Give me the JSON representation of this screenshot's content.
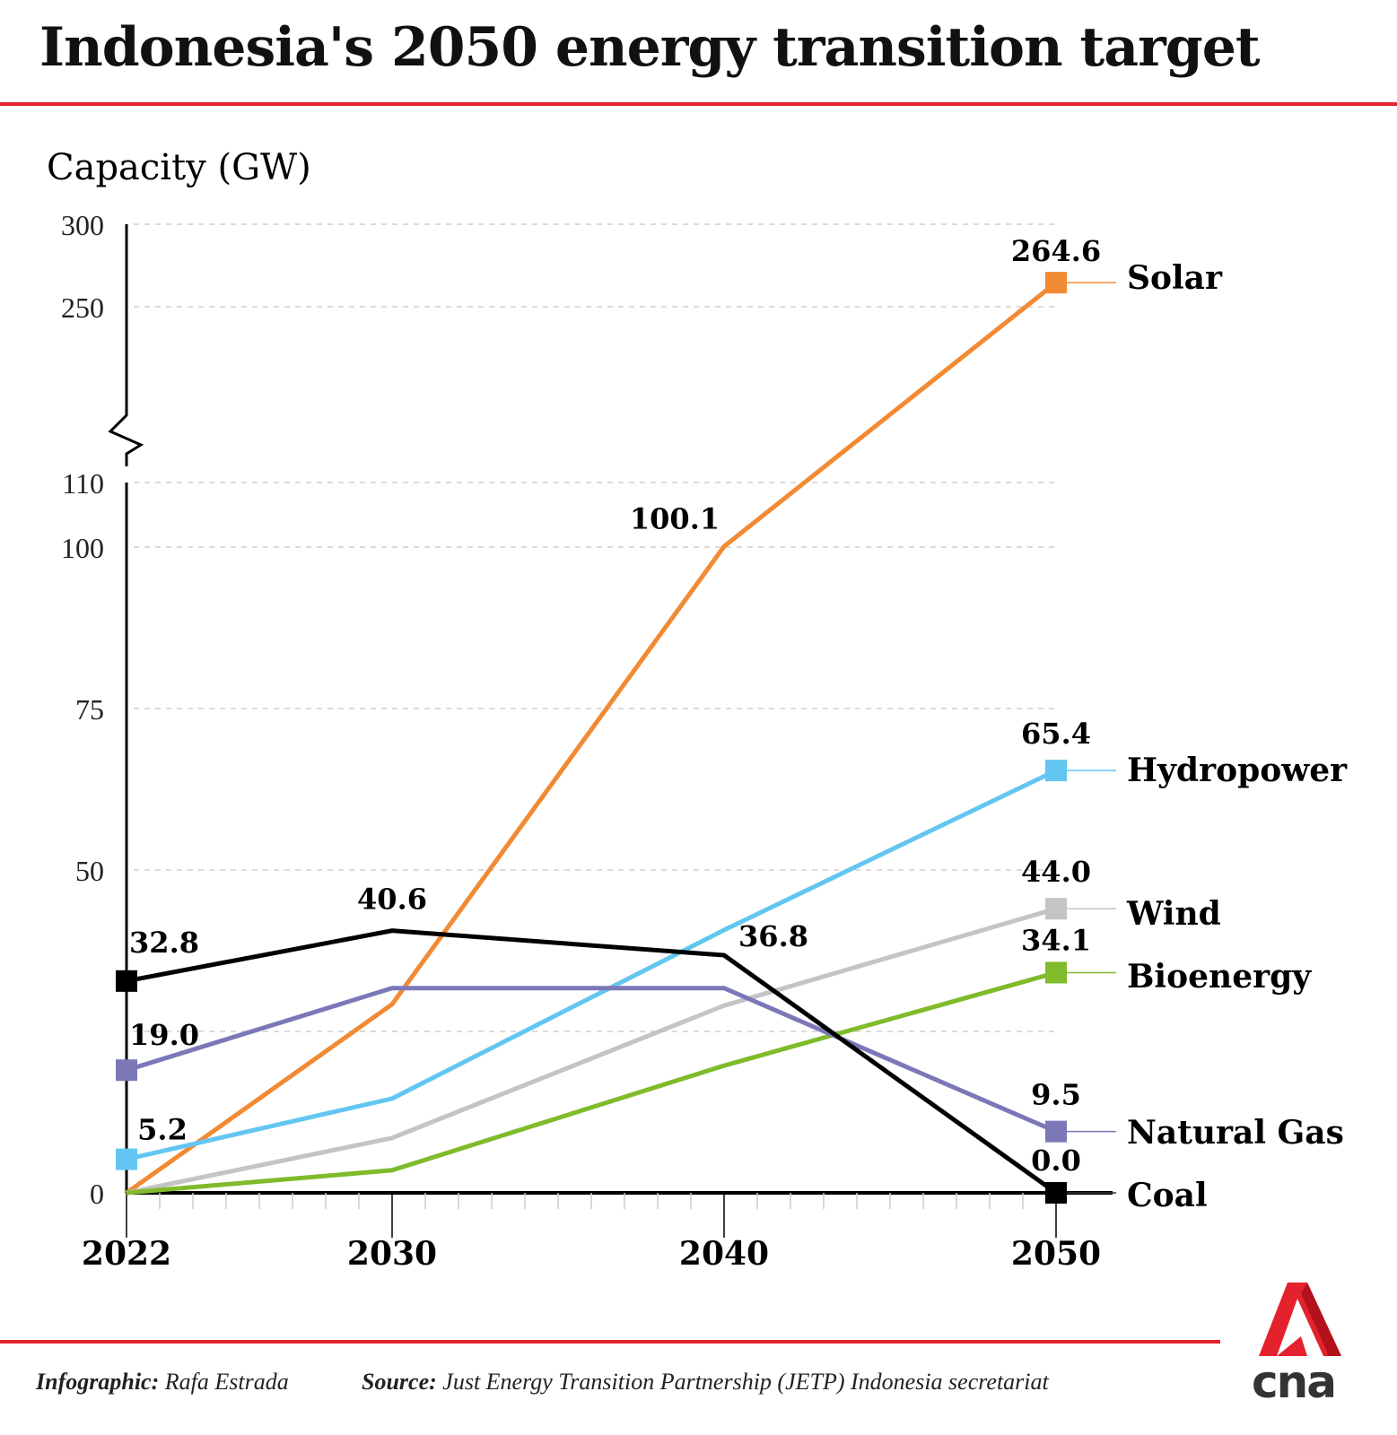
{
  "title": "Indonesia's 2050 energy transition target",
  "footer": {
    "infographic_label": "Infographic:",
    "infographic_value": "Rafa Estrada",
    "source_label": "Source:",
    "source_value": "Just Energy Transition Partnership (JETP) Indonesia secretariat"
  },
  "logo": {
    "text": "cna",
    "color": "#e4222e"
  },
  "chart_data": {
    "type": "line",
    "title": "Indonesia's 2050 energy transition target",
    "ylabel": "Capacity (GW)",
    "xlabel": "",
    "x": [
      2022,
      2030,
      2040,
      2050
    ],
    "x_tick_labels": [
      "2022",
      "2030",
      "2040",
      "2050"
    ],
    "x_range": [
      2022,
      2050
    ],
    "minor_ticks": "every year",
    "y_axis_broken": true,
    "y_lower_range": [
      0,
      110
    ],
    "y_upper_range": [
      250,
      300
    ],
    "y_tick_labels_lower": [
      "0",
      "50",
      "75",
      "100",
      "110"
    ],
    "y_tick_labels_upper": [
      "250",
      "300"
    ],
    "grid_lines": [
      25,
      50,
      75,
      100,
      110,
      250,
      300
    ],
    "grid": "dashed horizontal",
    "legend": "right-end labels",
    "series": [
      {
        "name": "Solar",
        "color": "#f28a33",
        "values": [
          0,
          29.2,
          100.1,
          264.6
        ],
        "labels": [
          null,
          null,
          "100.1",
          "264.6"
        ]
      },
      {
        "name": "Hydropower",
        "color": "#62c6f0",
        "values": [
          5.2,
          14.6,
          40.7,
          65.4
        ],
        "labels": [
          "5.2",
          null,
          null,
          "65.4"
        ]
      },
      {
        "name": "Wind",
        "color": "#c4c4c4",
        "values": [
          0,
          8.5,
          29.0,
          44.0
        ],
        "labels": [
          null,
          null,
          null,
          "44.0"
        ]
      },
      {
        "name": "Bioenergy",
        "color": "#7fbb2a",
        "values": [
          0,
          3.5,
          19.7,
          34.1
        ],
        "labels": [
          null,
          null,
          null,
          "34.1"
        ]
      },
      {
        "name": "Natural Gas",
        "color": "#7b78b8",
        "values": [
          19.0,
          31.7,
          31.7,
          9.5
        ],
        "labels": [
          "19.0",
          null,
          null,
          "9.5"
        ]
      },
      {
        "name": "Coal",
        "color": "#000000",
        "values": [
          32.8,
          40.6,
          36.8,
          0.0
        ],
        "labels": [
          "32.8",
          "40.6",
          "36.8",
          "0.0"
        ]
      }
    ]
  }
}
